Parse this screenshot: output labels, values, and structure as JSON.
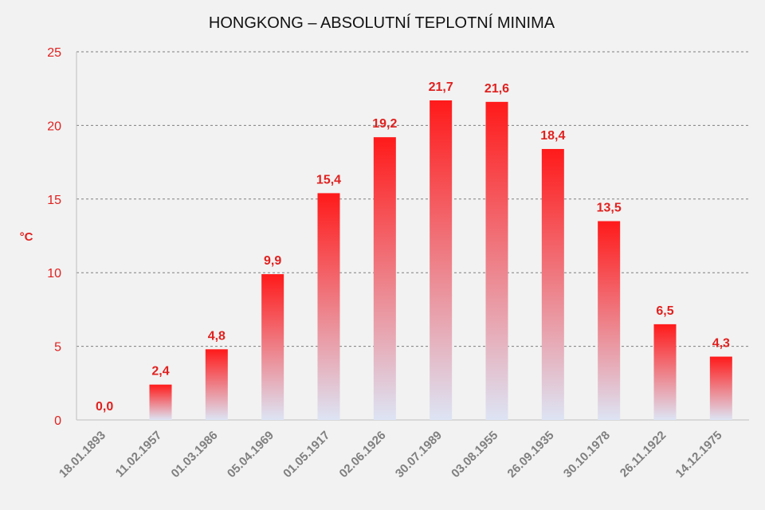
{
  "chart_data": {
    "type": "bar",
    "title": "HONGKONG – ABSOLUTNÍ TEPLOTNÍ MINIMA",
    "ylabel": "°C",
    "xlabel": "",
    "ylim": [
      0,
      25
    ],
    "yticks": [
      "0",
      "5",
      "10",
      "15",
      "20",
      "25"
    ],
    "grid": true,
    "categories": [
      "18.01.1893",
      "11.02.1957",
      "01.03.1986",
      "05.04.1969",
      "01.05.1917",
      "02.06.1926",
      "30.07.1989",
      "03.08.1955",
      "26.09.1935",
      "30.10.1978",
      "26.11.1922",
      "14.12.1975"
    ],
    "values": [
      0.0,
      2.4,
      4.8,
      9.9,
      15.4,
      19.2,
      21.7,
      21.6,
      18.4,
      13.5,
      6.5,
      4.3
    ],
    "data_labels": [
      "0,0",
      "2,4",
      "4,8",
      "9,9",
      "15,4",
      "19,2",
      "21,7",
      "21,6",
      "18,4",
      "13,5",
      "6,5",
      "4,3"
    ],
    "colors": {
      "bar_top": "#ff1a1a",
      "bar_bottom": "#dde4f4",
      "text_accent": "#e0211f",
      "tick_text": "#7f7f7f",
      "grid": "#7f7f7f",
      "background": "#f2f2f2"
    }
  }
}
